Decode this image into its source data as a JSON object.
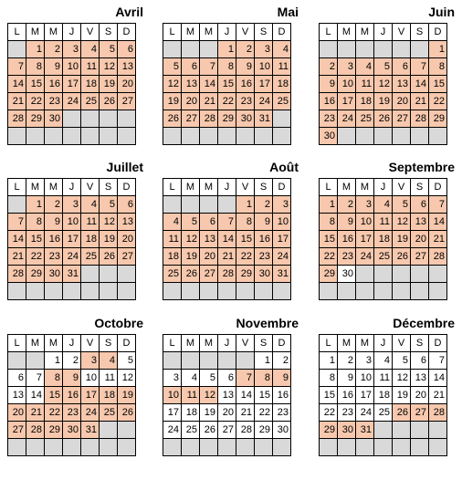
{
  "weekdays": [
    "L",
    "M",
    "M",
    "J",
    "V",
    "S",
    "D"
  ],
  "colors": {
    "highlight": "#f7c8ad",
    "filler": "#d9d9d9",
    "normal": "#ffffff"
  },
  "months": [
    {
      "name": "Avril",
      "offset": 1,
      "days": 30,
      "hl": [
        [
          1,
          30
        ]
      ]
    },
    {
      "name": "Mai",
      "offset": 3,
      "days": 31,
      "hl": [
        [
          1,
          31
        ]
      ]
    },
    {
      "name": "Juin",
      "offset": 6,
      "days": 30,
      "hl": [
        [
          1,
          30
        ]
      ]
    },
    {
      "name": "Juillet",
      "offset": 1,
      "days": 31,
      "hl": [
        [
          1,
          31
        ]
      ]
    },
    {
      "name": "Août",
      "offset": 4,
      "days": 31,
      "hl": [
        [
          1,
          31
        ]
      ]
    },
    {
      "name": "Septembre",
      "offset": 0,
      "days": 30,
      "hl": [
        [
          1,
          29
        ]
      ]
    },
    {
      "name": "Octobre",
      "offset": 2,
      "days": 31,
      "hl": [
        [
          3,
          4
        ],
        [
          8,
          9
        ],
        [
          15,
          19
        ],
        [
          20,
          26
        ],
        [
          27,
          31
        ]
      ]
    },
    {
      "name": "Novembre",
      "offset": 5,
      "days": 30,
      "hl": [
        [
          7,
          9
        ],
        [
          10,
          12
        ]
      ]
    },
    {
      "name": "Décembre",
      "offset": 0,
      "days": 31,
      "hl": [
        [
          26,
          28
        ],
        [
          29,
          31
        ]
      ]
    }
  ]
}
